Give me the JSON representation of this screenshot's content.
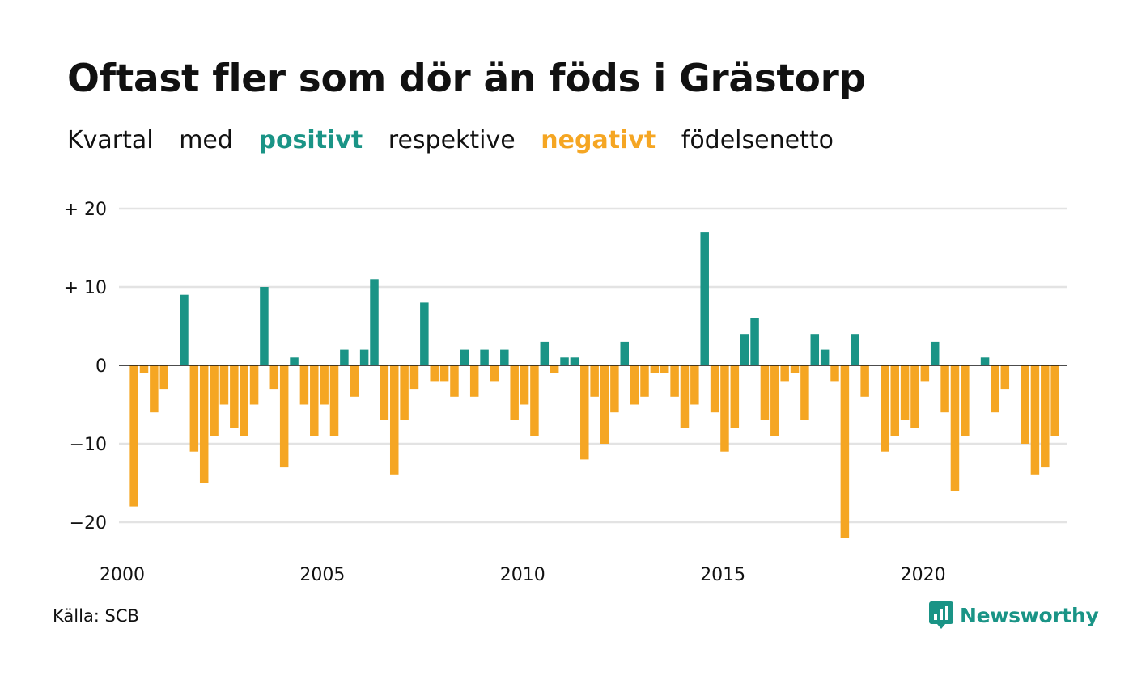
{
  "title": "Oftast fler som dör än föds i Grästorp",
  "subtitle": {
    "part1": "Kvartal",
    "part2": "med",
    "positive_word": "positivt",
    "part3": "respektive",
    "negative_word": "negativt",
    "part4": "födelsenetto"
  },
  "source": "Källa: SCB",
  "brand": "Newsworthy",
  "colors": {
    "positive": "#1a9486",
    "negative": "#f5a623",
    "grid": "#e3e3e3",
    "zero": "#111111"
  },
  "chart_data": {
    "type": "bar",
    "x_start": "2000 Q1",
    "period": "quarter",
    "ylim": [
      -22,
      20
    ],
    "yticks": [
      {
        "value": 20,
        "label": "+ 20"
      },
      {
        "value": 10,
        "label": "+ 10"
      },
      {
        "value": 0,
        "label": "0"
      },
      {
        "value": -10,
        "label": "−10"
      },
      {
        "value": -20,
        "label": "−20"
      }
    ],
    "xticks": [
      "2000",
      "2005",
      "2010",
      "2015",
      "2020"
    ],
    "grid": true,
    "values": [
      0,
      -18,
      -1,
      -6,
      -3,
      0,
      9,
      -11,
      -15,
      -9,
      -5,
      -8,
      -9,
      -5,
      10,
      -3,
      -13,
      1,
      -5,
      -9,
      -5,
      -9,
      2,
      -4,
      2,
      11,
      -7,
      -14,
      -7,
      -3,
      8,
      -2,
      -2,
      -4,
      2,
      -4,
      2,
      -2,
      2,
      -7,
      -5,
      -9,
      3,
      -1,
      1,
      1,
      -12,
      -4,
      -10,
      -6,
      3,
      -5,
      -4,
      -1,
      -1,
      -4,
      -8,
      -5,
      17,
      -6,
      -11,
      -8,
      4,
      6,
      -7,
      -9,
      -2,
      -1,
      -7,
      4,
      2,
      -2,
      -22,
      4,
      -4,
      0,
      -11,
      -9,
      -7,
      -8,
      -2,
      3,
      -6,
      -16,
      -9,
      0,
      1,
      -6,
      -3,
      0,
      -10,
      -14,
      -13,
      -9
    ]
  }
}
